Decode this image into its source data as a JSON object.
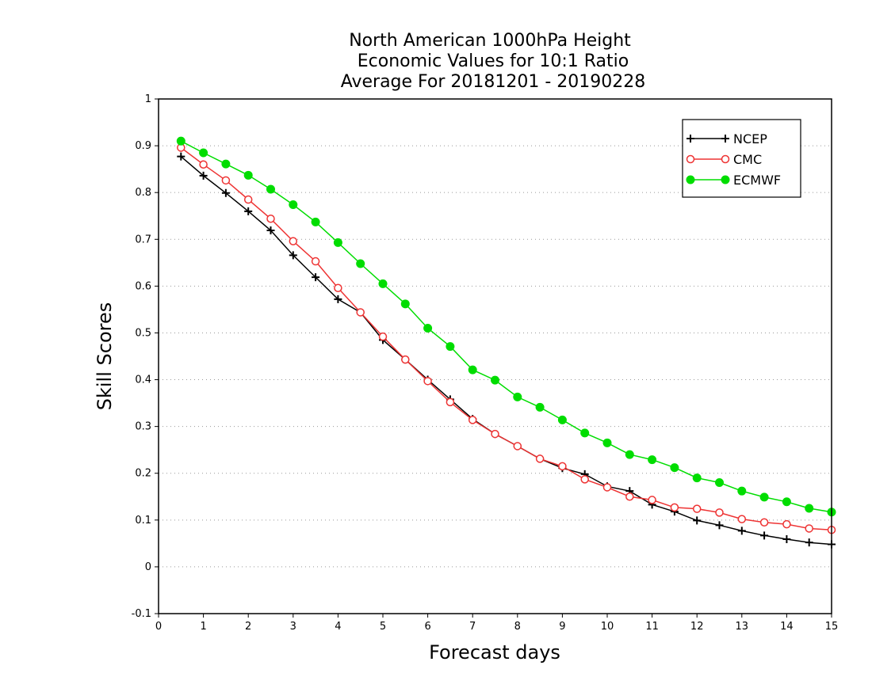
{
  "chart_data": {
    "type": "line",
    "title": [
      "North American 1000hPa Height",
      "Economic Values for 10:1 Ratio",
      "Average For 20181201 - 20190228"
    ],
    "xlabel": "Forecast days",
    "ylabel": "Skill Scores",
    "xlim": [
      0,
      15
    ],
    "ylim": [
      -0.1,
      1
    ],
    "xticks": [
      0,
      1,
      2,
      3,
      4,
      5,
      6,
      7,
      8,
      9,
      10,
      11,
      12,
      13,
      14,
      15
    ],
    "yticks": [
      -0.1,
      0,
      0.1,
      0.2,
      0.3,
      0.4,
      0.5,
      0.6,
      0.7,
      0.8,
      0.9,
      1
    ],
    "ytick_labels": [
      "-0.1",
      "0",
      "0.1",
      "0.2",
      "0.3",
      "0.4",
      "0.5",
      "0.6",
      "0.7",
      "0.8",
      "0.9",
      "1"
    ],
    "grid": "horizontal dotted",
    "legend_position": "top-right",
    "x": [
      0.5,
      1,
      1.5,
      2,
      2.5,
      3,
      3.5,
      4,
      4.5,
      5,
      5.5,
      6,
      6.5,
      7,
      7.5,
      8,
      8.5,
      9,
      9.5,
      10,
      10.5,
      11,
      11.5,
      12,
      12.5,
      13,
      13.5,
      14,
      14.5,
      15
    ],
    "series": [
      {
        "name": "NCEP",
        "color": "#000000",
        "marker": "plus",
        "values": [
          0.877,
          0.836,
          0.799,
          0.76,
          0.719,
          0.666,
          0.619,
          0.572,
          0.544,
          0.485,
          0.443,
          0.4,
          0.358,
          0.316,
          0.284,
          0.258,
          0.231,
          0.211,
          0.198,
          0.172,
          0.162,
          0.133,
          0.118,
          0.099,
          0.089,
          0.077,
          0.067,
          0.059,
          0.052,
          0.048
        ]
      },
      {
        "name": "CMC",
        "color": "#ee3333",
        "marker": "open-circle",
        "values": [
          0.896,
          0.86,
          0.826,
          0.785,
          0.744,
          0.696,
          0.653,
          0.596,
          0.544,
          0.492,
          0.443,
          0.397,
          0.352,
          0.314,
          0.284,
          0.258,
          0.231,
          0.215,
          0.187,
          0.17,
          0.15,
          0.143,
          0.127,
          0.124,
          0.116,
          0.102,
          0.095,
          0.091,
          0.082,
          0.079
        ]
      },
      {
        "name": "ECMWF",
        "color": "#00dd00",
        "marker": "filled-circle",
        "values": [
          0.91,
          0.885,
          0.861,
          0.837,
          0.807,
          0.774,
          0.737,
          0.693,
          0.648,
          0.605,
          0.562,
          0.51,
          0.471,
          0.421,
          0.399,
          0.363,
          0.341,
          0.314,
          0.286,
          0.265,
          0.24,
          0.229,
          0.212,
          0.19,
          0.18,
          0.162,
          0.149,
          0.139,
          0.125,
          0.117
        ]
      }
    ]
  }
}
